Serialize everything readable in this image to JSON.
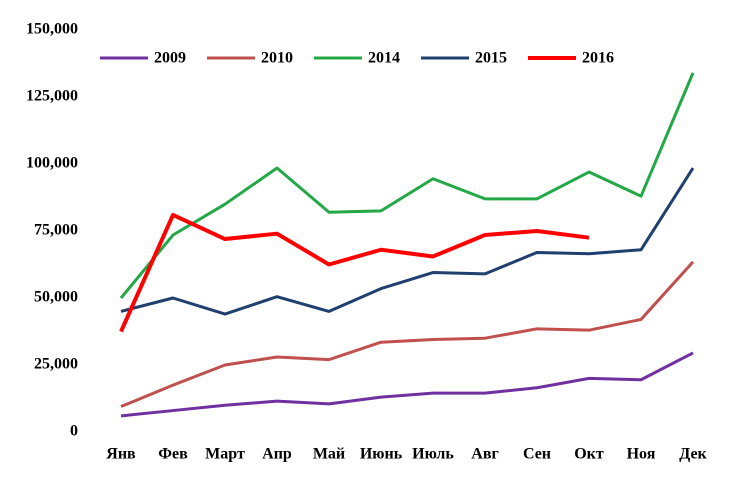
{
  "chart_data": {
    "type": "line",
    "categories": [
      "Янв",
      "Фев",
      "Март",
      "Апр",
      "Май",
      "Июнь",
      "Июль",
      "Авг",
      "Сен",
      "Окт",
      "Ноя",
      "Дек"
    ],
    "series": [
      {
        "name": "2009",
        "color": "#7030a0",
        "values": [
          6000,
          8000,
          10000,
          11500,
          10500,
          13000,
          14500,
          14500,
          16500,
          20000,
          19500,
          29500
        ]
      },
      {
        "name": "2010",
        "color": "#c0504d",
        "values": [
          9500,
          17500,
          25000,
          28000,
          27000,
          33500,
          34500,
          35000,
          38500,
          38000,
          42000,
          63500
        ]
      },
      {
        "name": "2014",
        "color": "#22a846",
        "values": [
          50000,
          73500,
          85000,
          98500,
          82000,
          82500,
          94500,
          87000,
          87000,
          97000,
          88000,
          134000
        ]
      },
      {
        "name": "2015",
        "color": "#1f3f6e",
        "values": [
          45000,
          50000,
          44000,
          50500,
          45000,
          53500,
          59500,
          59000,
          67000,
          66500,
          68000,
          98500
        ]
      },
      {
        "name": "2016",
        "color": "#ff0000",
        "values": [
          37500,
          81000,
          72000,
          74000,
          62500,
          68000,
          65500,
          73500,
          75000,
          72500,
          null,
          null
        ]
      }
    ],
    "ylim": [
      0,
      150000
    ],
    "yticks": [
      0,
      {
        "value": 25000,
        "label": "25,000"
      },
      {
        "value": 50000,
        "label": "50,000"
      },
      {
        "value": 75000,
        "label": "75,000"
      },
      {
        "value": 100000,
        "label": "100,000"
      },
      {
        "value": 125000,
        "label": "125,000"
      },
      {
        "value": 150000,
        "label": "150,000"
      }
    ],
    "grid": false,
    "legend": "top"
  }
}
